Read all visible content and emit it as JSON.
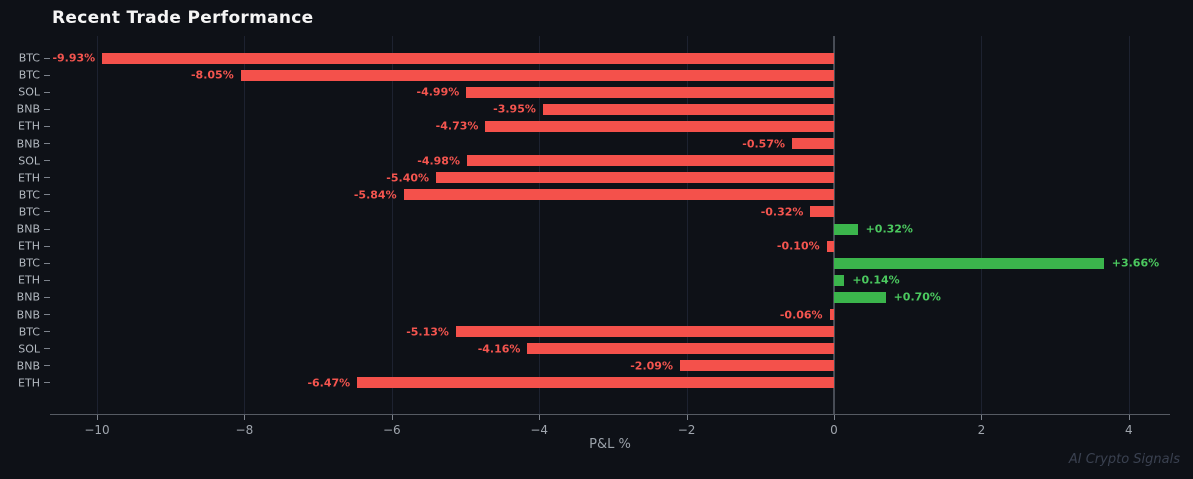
{
  "title": "Recent Trade Performance",
  "watermark": "AI Crypto Signals",
  "colors": {
    "background": "#0e1117",
    "bar_negative": "#f4514b",
    "bar_positive": "#3bb54c",
    "label_negative": "#f4554f",
    "label_positive": "#4bc95f",
    "grid": "#1d2230",
    "zero_line": "#474c55",
    "axis_line": "#565b63",
    "tick_text": "#a0a6ae",
    "category_text": "#b3b9c0",
    "title_text": "#f5f5f5",
    "watermark_text": "#3a4150"
  },
  "chart_data": {
    "type": "bar",
    "orientation": "horizontal",
    "title": "Recent Trade Performance",
    "xlabel": "P&L %",
    "ylabel": "",
    "categories": [
      "BTC",
      "BTC",
      "SOL",
      "BNB",
      "ETH",
      "BNB",
      "SOL",
      "ETH",
      "BTC",
      "BTC",
      "BNB",
      "ETH",
      "BTC",
      "ETH",
      "BNB",
      "BNB",
      "BTC",
      "SOL",
      "BNB",
      "ETH"
    ],
    "values": [
      -9.93,
      -8.05,
      -4.99,
      -3.95,
      -4.73,
      -0.57,
      -4.98,
      -5.4,
      -5.84,
      -0.32,
      0.32,
      -0.1,
      3.66,
      0.14,
      0.7,
      -0.06,
      -5.13,
      -4.16,
      -2.09,
      -6.47
    ],
    "value_labels": [
      "-9.93%",
      "-8.05%",
      "-4.99%",
      "-3.95%",
      "-4.73%",
      "-0.57%",
      "-4.98%",
      "-5.40%",
      "-5.84%",
      "-0.32%",
      "+0.32%",
      "-0.10%",
      "+3.66%",
      "+0.14%",
      "+0.70%",
      "-0.06%",
      "-5.13%",
      "-4.16%",
      "-2.09%",
      "-6.47%"
    ],
    "x_ticks": [
      -10,
      -8,
      -6,
      -4,
      -2,
      0,
      2,
      4
    ],
    "x_tick_labels": [
      "−10",
      "−8",
      "−6",
      "−4",
      "−2",
      "0",
      "2",
      "4"
    ],
    "xlim": [
      -10.64,
      4.56
    ],
    "grid": "vertical",
    "legend": "none"
  }
}
